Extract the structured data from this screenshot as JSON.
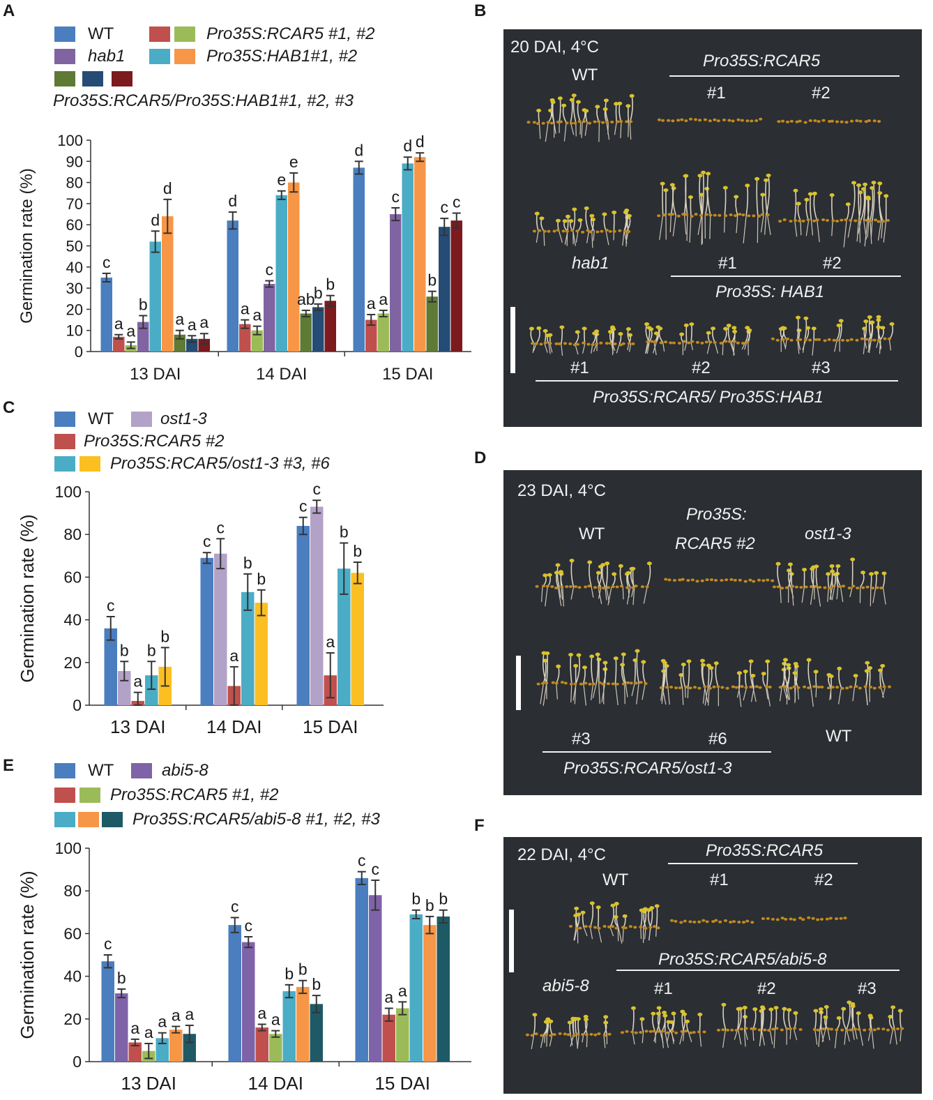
{
  "colors": {
    "wt": "#4a7ebf",
    "hab1": "#8064a2",
    "rcar5_1": "#c0504d",
    "rcar5_2": "#9bbb59",
    "hab1oe_1": "#4bacc6",
    "hab1oe_2": "#f79646",
    "dbl_1": "#5e7a35",
    "dbl_2": "#244c74",
    "dbl_3": "#7c1a1e",
    "ost13": "#b3a2c7",
    "ost_comp_6": "#fcbf22",
    "abi58": "#7f63a8",
    "abi_comp_3": "#1e5a66"
  },
  "panels": {
    "A": {
      "letter": "A",
      "legend": {
        "wt": "WT",
        "rcar5": "Pro35S:RCAR5 #1, #2",
        "hab1": "hab1",
        "hab1oe": "Pro35S:HAB1#1, #2",
        "double": "Pro35S:RCAR5/Pro35S:HAB1#1, #2, #3"
      }
    },
    "B": {
      "letter": "B",
      "condition": "20 DAI, 4°C",
      "wt": "WT",
      "rcar5": "Pro35S:RCAR5",
      "n1": "#1",
      "n2": "#2",
      "hab1": "hab1",
      "m1": "#1",
      "m2": "#2",
      "hab1oe": "Pro35S: HAB1",
      "k1": "#1",
      "k2": "#2",
      "k3": "#3",
      "double": "Pro35S:RCAR5/ Pro35S:HAB1"
    },
    "C": {
      "letter": "C",
      "legend": {
        "wt": "WT",
        "ost13": "ost1-3",
        "rcar5": "Pro35S:RCAR5 #2",
        "comp": "Pro35S:RCAR5/ost1-3 #3, #6"
      }
    },
    "D": {
      "letter": "D",
      "condition": "23 DAI, 4°C",
      "wt": "WT",
      "rcar5_a": "Pro35S:",
      "rcar5_b": "RCAR5 #2",
      "ost13": "ost1-3",
      "n3": "#3",
      "n6": "#6",
      "wt2": "WT",
      "comp": "Pro35S:RCAR5/ost1-3"
    },
    "E": {
      "letter": "E",
      "legend": {
        "wt": "WT",
        "abi58": "abi5-8",
        "rcar5": "Pro35S:RCAR5 #1, #2",
        "comp": "Pro35S:RCAR5/abi5-8 #1, #2, #3"
      }
    },
    "F": {
      "letter": "F",
      "condition": "22 DAI, 4°C",
      "rcar5": "Pro35S:RCAR5",
      "wt": "WT",
      "n1": "#1",
      "n2": "#2",
      "comp": "Pro35S:RCAR5/abi5-8",
      "abi58": "abi5-8",
      "m1": "#1",
      "m2": "#2",
      "m3": "#3"
    }
  },
  "chart_data": [
    {
      "id": "A",
      "type": "bar",
      "title": "",
      "xlabel": "",
      "ylabel": "Germination rate (%)",
      "ylim": [
        0,
        100
      ],
      "yticks": [
        0,
        10,
        20,
        30,
        40,
        50,
        60,
        70,
        80,
        90,
        100
      ],
      "categories": [
        "13 DAI",
        "14 DAI",
        "15 DAI"
      ],
      "series": [
        {
          "name": "WT",
          "color": "#4a7ebf",
          "values": [
            35,
            62,
            87
          ],
          "errors": [
            2,
            4,
            3
          ],
          "letters": [
            "c",
            "d",
            "d"
          ]
        },
        {
          "name": "Pro35S:RCAR5 #1",
          "color": "#c0504d",
          "values": [
            7,
            13,
            15
          ],
          "errors": [
            1,
            2,
            2.5
          ],
          "letters": [
            "a",
            "a",
            "a"
          ]
        },
        {
          "name": "Pro35S:RCAR5 #2",
          "color": "#9bbb59",
          "values": [
            3,
            10,
            18
          ],
          "errors": [
            1.5,
            2,
            1.5
          ],
          "letters": [
            "a",
            "a",
            "a"
          ]
        },
        {
          "name": "hab1",
          "color": "#8064a2",
          "values": [
            14,
            32,
            65
          ],
          "errors": [
            3,
            1.5,
            3
          ],
          "letters": [
            "b",
            "c",
            "c"
          ]
        },
        {
          "name": "Pro35S:HAB1#1",
          "color": "#4bacc6",
          "values": [
            52,
            74,
            89
          ],
          "errors": [
            5,
            2,
            3
          ],
          "letters": [
            "d",
            "e",
            "d"
          ]
        },
        {
          "name": "Pro35S:HAB1#2",
          "color": "#f79646",
          "values": [
            64,
            80,
            92
          ],
          "errors": [
            8,
            4.5,
            2
          ],
          "letters": [
            "d",
            "e",
            "d"
          ]
        },
        {
          "name": "Pro35S:RCAR5/Pro35S:HAB1#1",
          "color": "#5e7a35",
          "values": [
            8,
            18,
            26
          ],
          "errors": [
            2,
            1.5,
            2.5
          ],
          "letters": [
            "a",
            "ab",
            "b"
          ]
        },
        {
          "name": "Pro35S:RCAR5/Pro35S:HAB1#2",
          "color": "#244c74",
          "values": [
            6,
            21,
            59
          ],
          "errors": [
            1.5,
            1.5,
            4
          ],
          "letters": [
            "a",
            "b",
            "c"
          ]
        },
        {
          "name": "Pro35S:RCAR5/Pro35S:HAB1#3",
          "color": "#7c1a1e",
          "values": [
            6,
            24,
            62
          ],
          "errors": [
            2.5,
            2.5,
            3.5
          ],
          "letters": [
            "a",
            "b",
            "c"
          ]
        }
      ]
    },
    {
      "id": "C",
      "type": "bar",
      "title": "",
      "xlabel": "",
      "ylabel": "Germination rate (%)",
      "ylim": [
        0,
        100
      ],
      "yticks": [
        0,
        20,
        40,
        60,
        80,
        100
      ],
      "categories": [
        "13 DAI",
        "14 DAI",
        "15 DAI"
      ],
      "series": [
        {
          "name": "WT",
          "color": "#4a7ebf",
          "values": [
            36,
            69,
            84
          ],
          "errors": [
            5.5,
            2.5,
            4
          ],
          "letters": [
            "c",
            "c",
            "c"
          ]
        },
        {
          "name": "ost1-3",
          "color": "#b3a2c7",
          "values": [
            16,
            71,
            93
          ],
          "errors": [
            4.5,
            7,
            3
          ],
          "letters": [
            "b",
            "c",
            "c"
          ]
        },
        {
          "name": "Pro35S:RCAR5 #2",
          "color": "#c0504d",
          "values": [
            2,
            9,
            14
          ],
          "errors": [
            4,
            9,
            10.5
          ],
          "letters": [
            "a",
            "a",
            "a"
          ]
        },
        {
          "name": "Pro35S:RCAR5/ost1-3 #3",
          "color": "#4bacc6",
          "values": [
            14,
            53,
            64
          ],
          "errors": [
            6.5,
            8.5,
            12
          ],
          "letters": [
            "b",
            "b",
            "b"
          ]
        },
        {
          "name": "Pro35S:RCAR5/ost1-3 #6",
          "color": "#fcbf22",
          "values": [
            18,
            48,
            62
          ],
          "errors": [
            9,
            6,
            5
          ],
          "letters": [
            "b",
            "b",
            "b"
          ]
        }
      ]
    },
    {
      "id": "E",
      "type": "bar",
      "title": "",
      "xlabel": "",
      "ylabel": "Germination rate (%)",
      "ylim": [
        0,
        100
      ],
      "yticks": [
        0,
        20,
        40,
        60,
        80,
        100
      ],
      "categories": [
        "13 DAI",
        "14 DAI",
        "15 DAI"
      ],
      "series": [
        {
          "name": "WT",
          "color": "#4a7ebf",
          "values": [
            47,
            64,
            86
          ],
          "errors": [
            3,
            3.5,
            3
          ],
          "letters": [
            "c",
            "c",
            "c"
          ]
        },
        {
          "name": "abi5-8",
          "color": "#7f63a8",
          "values": [
            32,
            56,
            78
          ],
          "errors": [
            2,
            2.5,
            7
          ],
          "letters": [
            "b",
            "c",
            "c"
          ]
        },
        {
          "name": "Pro35S:RCAR5 #1",
          "color": "#c0504d",
          "values": [
            9,
            16,
            22
          ],
          "errors": [
            1.5,
            1.5,
            3
          ],
          "letters": [
            "a",
            "a",
            "a"
          ]
        },
        {
          "name": "Pro35S:RCAR5 #2",
          "color": "#9bbb59",
          "values": [
            5,
            13,
            25
          ],
          "errors": [
            3.5,
            1.5,
            3
          ],
          "letters": [
            "a",
            "a",
            "a"
          ]
        },
        {
          "name": "Pro35S:RCAR5/abi5-8 #1",
          "color": "#4bacc6",
          "values": [
            11,
            33,
            69
          ],
          "errors": [
            2.5,
            3,
            2
          ],
          "letters": [
            "a",
            "b",
            "b"
          ]
        },
        {
          "name": "Pro35S:RCAR5/abi5-8 #2",
          "color": "#f79646",
          "values": [
            15,
            35,
            64
          ],
          "errors": [
            1.5,
            3,
            4
          ],
          "letters": [
            "a",
            "b",
            "b"
          ]
        },
        {
          "name": "Pro35S:RCAR5/abi5-8 #3",
          "color": "#1e5a66",
          "values": [
            13,
            27,
            68
          ],
          "errors": [
            4,
            4,
            3
          ],
          "letters": [
            "a",
            "b",
            "b"
          ]
        }
      ]
    }
  ]
}
